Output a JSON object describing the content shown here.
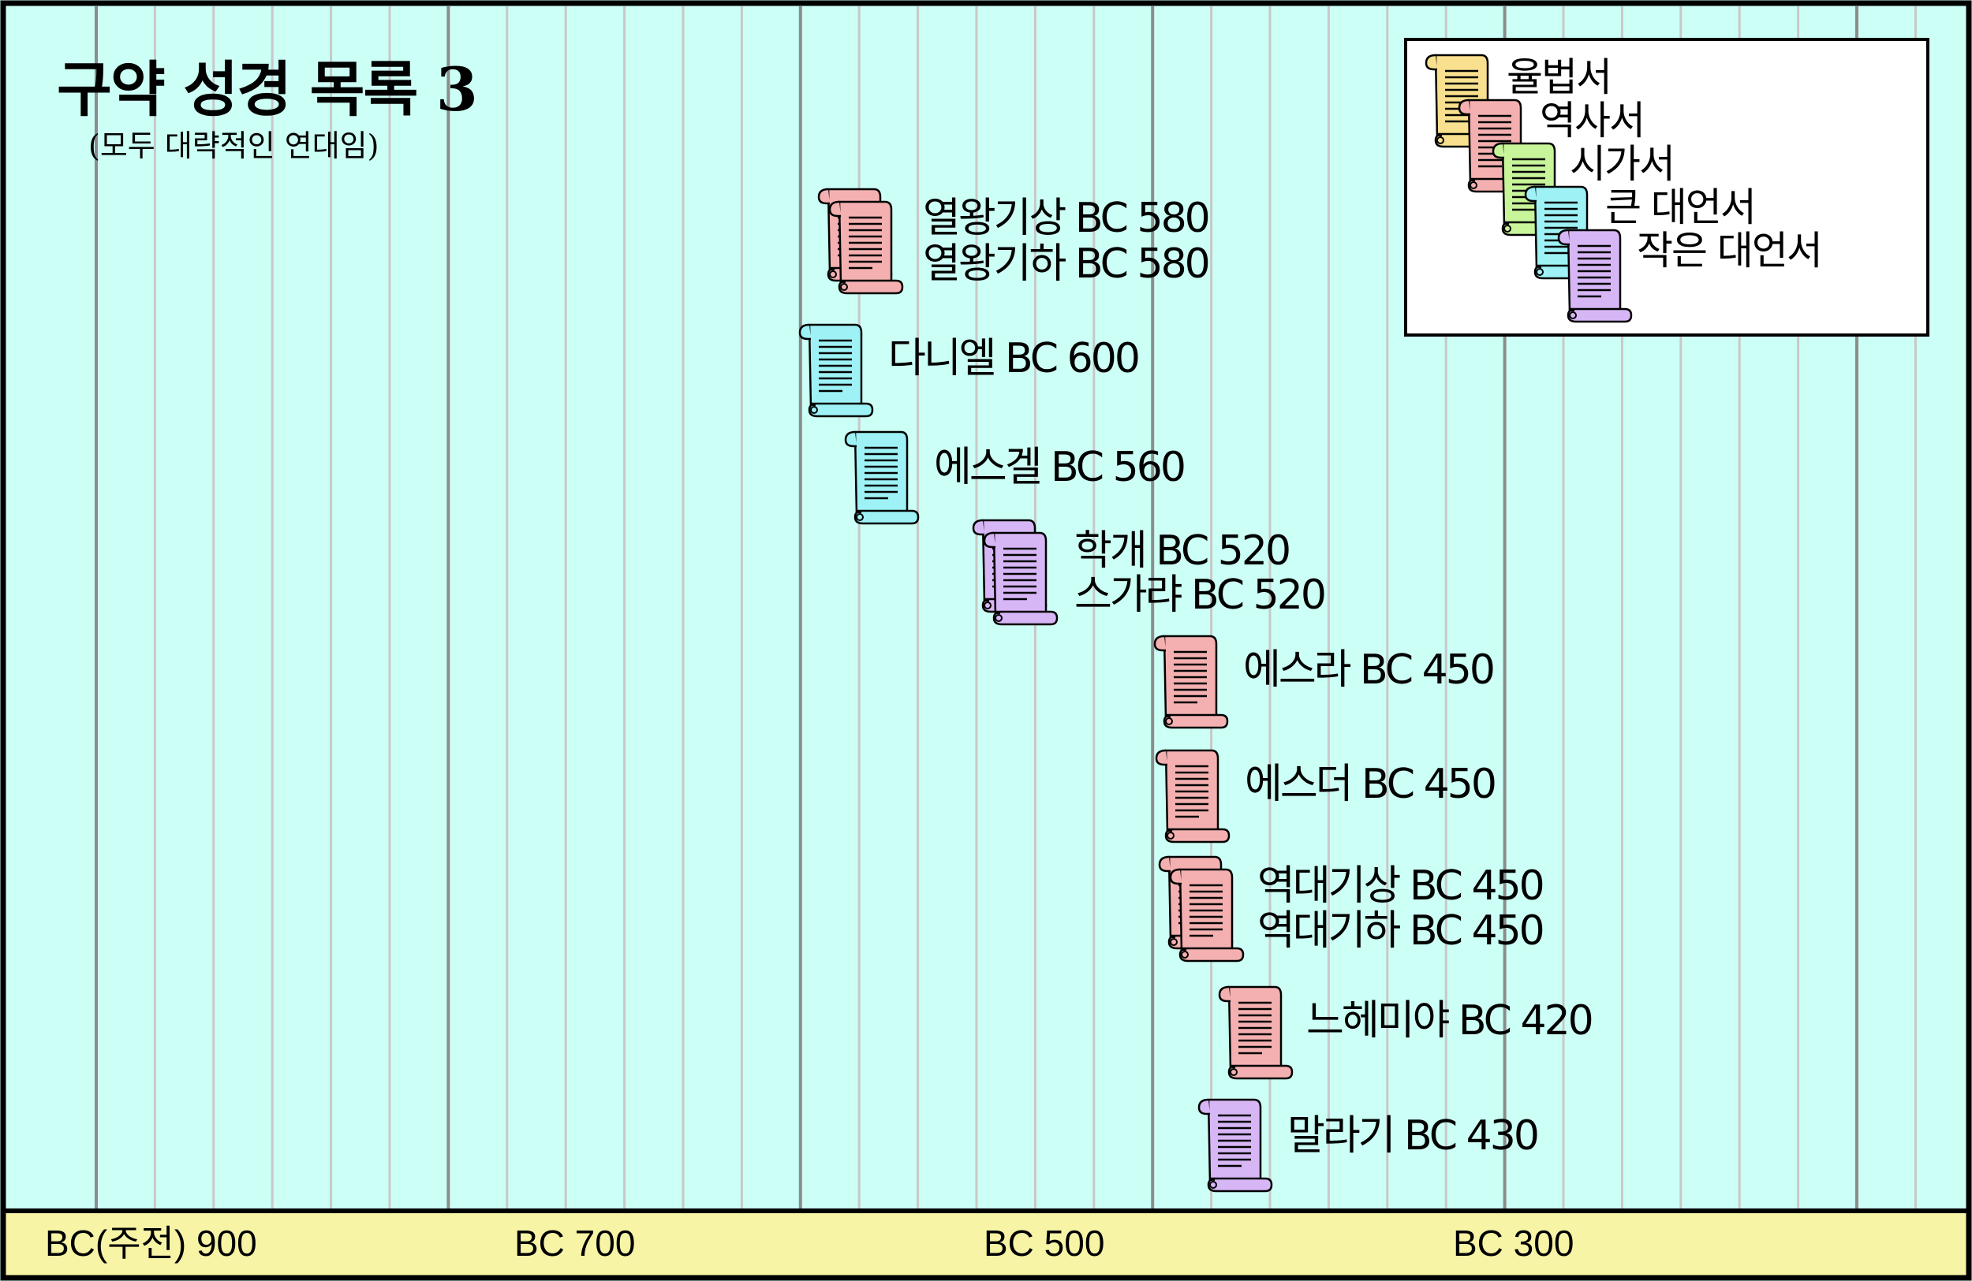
{
  "header": {
    "title": "구약 성경 목록 3",
    "subtitle": "(모두 대략적인 연대임)"
  },
  "colors": {
    "background": "#ccfff5",
    "axis_band": "#f7f4a6",
    "gridline_major": "#8c8c8c",
    "gridline_minor": "#c8c8c8",
    "law": "#f8e08e",
    "history": "#f4b0b0",
    "poetry": "#c8f59a",
    "major_prophets": "#9ef2f6",
    "minor_prophets": "#d7b6f6"
  },
  "legend": {
    "items": [
      {
        "label": "율법서",
        "color": "#f8e08e",
        "icon": "scroll-icon"
      },
      {
        "label": "역사서",
        "color": "#f4b0b0",
        "icon": "scroll-icon"
      },
      {
        "label": "시가서",
        "color": "#c8f59a",
        "icon": "scroll-icon"
      },
      {
        "label": "큰 대언서",
        "color": "#9ef2f6",
        "icon": "scroll-icon"
      },
      {
        "label": "작은 대언서",
        "color": "#d7b6f6",
        "icon": "scroll-icon"
      }
    ]
  },
  "axis": {
    "ticks": [
      {
        "label": "BC(주전) 900",
        "year": 900
      },
      {
        "label": "BC 700",
        "year": 700
      },
      {
        "label": "BC 500",
        "year": 500
      },
      {
        "label": "BC 300",
        "year": 300
      }
    ]
  },
  "books": [
    {
      "label": "열왕기상 BC 580",
      "category": "history"
    },
    {
      "label": "열왕기하 BC 580",
      "category": "history"
    },
    {
      "label": "다니엘 BC 600",
      "category": "major_prophets"
    },
    {
      "label": "에스겔 BC 560",
      "category": "major_prophets"
    },
    {
      "label": "학개 BC 520",
      "category": "minor_prophets"
    },
    {
      "label": "스가랴 BC 520",
      "category": "minor_prophets"
    },
    {
      "label": "에스라 BC 450",
      "category": "history"
    },
    {
      "label": "에스더 BC 450",
      "category": "history"
    },
    {
      "label": "역대기상 BC 450",
      "category": "history"
    },
    {
      "label": "역대기하 BC 450",
      "category": "history"
    },
    {
      "label": "느헤미야 BC 420",
      "category": "history"
    },
    {
      "label": "말라기 BC 430",
      "category": "minor_prophets"
    }
  ]
}
